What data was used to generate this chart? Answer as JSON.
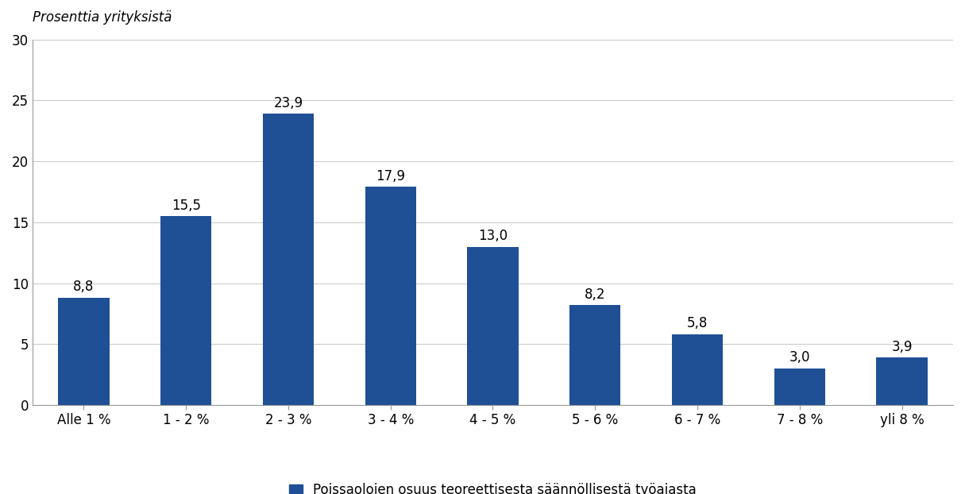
{
  "categories": [
    "Alle 1 %",
    "1 - 2 %",
    "2 - 3 %",
    "3 - 4 %",
    "4 - 5 %",
    "5 - 6 %",
    "6 - 7 %",
    "7 - 8 %",
    "yli 8 %"
  ],
  "values": [
    8.8,
    15.5,
    23.9,
    17.9,
    13.0,
    8.2,
    5.8,
    3.0,
    3.9
  ],
  "bar_color": "#1F5096",
  "ylim": [
    0,
    30
  ],
  "yticks": [
    0,
    5,
    10,
    15,
    20,
    25,
    30
  ],
  "ylabel": "Prosenttia yrityksistä",
  "legend_label": "Poissaolojen osuus teoreettisesta säännöllisestä työajasta",
  "background_color": "#ffffff",
  "tick_fontsize": 12,
  "value_fontsize": 12,
  "ylabel_fontsize": 12,
  "legend_fontsize": 12,
  "bar_width": 0.5
}
